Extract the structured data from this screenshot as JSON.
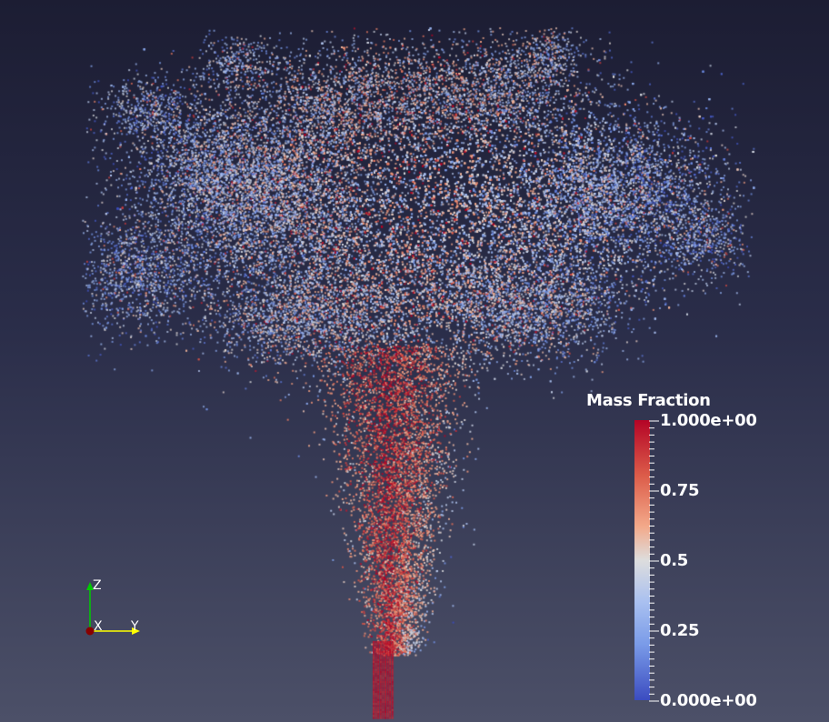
{
  "legend": {
    "title": "Mass Fraction",
    "ticks": [
      "1.000e+00",
      "0.75",
      "0.5",
      "0.25",
      "0.000e+00"
    ],
    "range": [
      0,
      1
    ],
    "colors": {
      "high": "#b40426",
      "mid": "#dddddd",
      "low": "#3b4cc0"
    }
  },
  "axes": {
    "z_label": "Z",
    "x_label": "X",
    "y_label": "Y",
    "z_color": "#00cc00",
    "y_color": "#ffff00",
    "x_color": "#cc0000"
  }
}
